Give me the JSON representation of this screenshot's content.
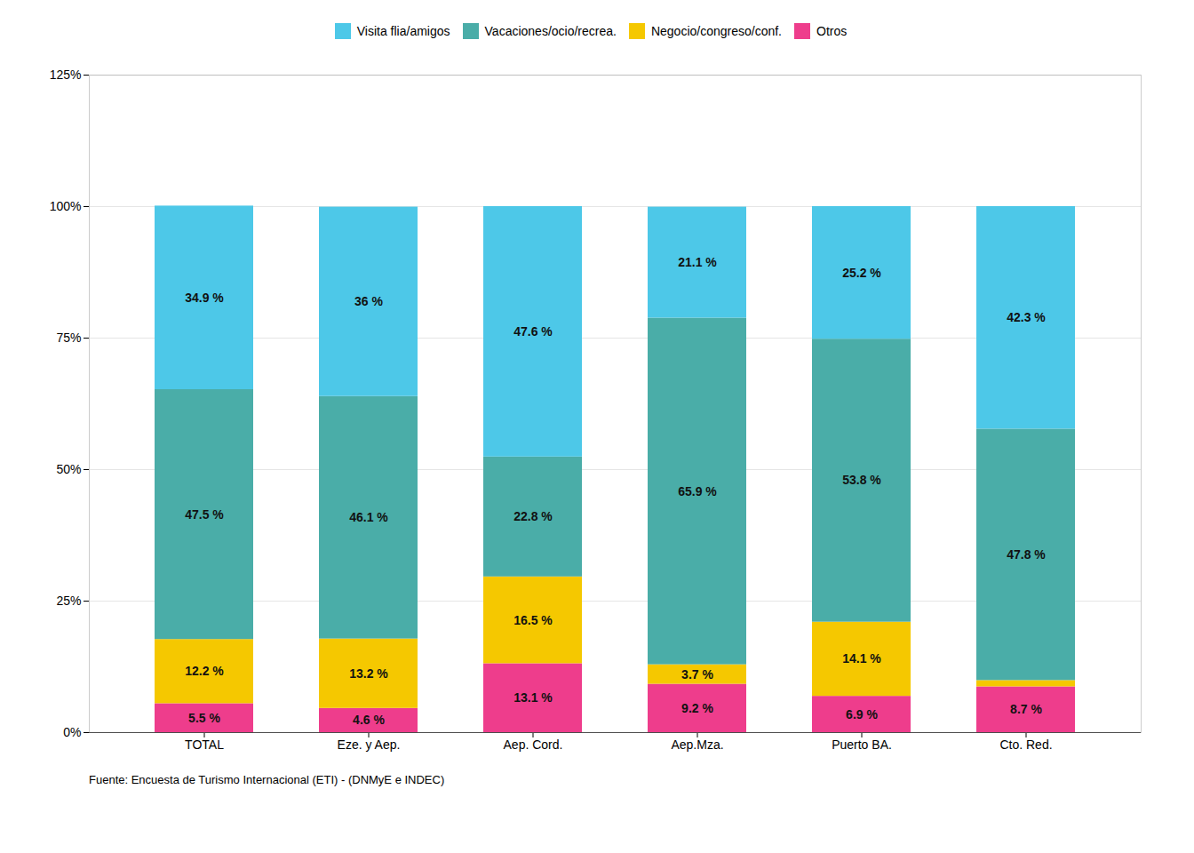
{
  "chart_data": {
    "type": "bar",
    "stacked": true,
    "categories": [
      "TOTAL",
      "Eze. y Aep.",
      "Aep. Cord.",
      "Aep.Mza.",
      "Puerto BA.",
      "Cto. Red."
    ],
    "series": [
      {
        "name": "Otros",
        "color": "#EE3D8C",
        "values": [
          5.5,
          4.6,
          13.1,
          9.2,
          6.9,
          8.7
        ],
        "value_labels": [
          "5.5 %",
          "4.6 %",
          "13.1 %",
          "9.2 %",
          "6.9 %",
          "8.7 %"
        ]
      },
      {
        "name": "Negocio/congreso/conf.",
        "color": "#F5C800",
        "values": [
          12.2,
          13.2,
          16.5,
          3.7,
          14.1,
          1.2
        ],
        "value_labels": [
          "12.2 %",
          "13.2 %",
          "16.5 %",
          "3.7 %",
          "14.1 %",
          null
        ]
      },
      {
        "name": "Vacaciones/ocio/recrea.",
        "color": "#4AADA8",
        "values": [
          47.5,
          46.1,
          22.8,
          65.9,
          53.8,
          47.8
        ],
        "value_labels": [
          "47.5 %",
          "46.1 %",
          "22.8 %",
          "65.9 %",
          "53.8 %",
          "47.8 %"
        ]
      },
      {
        "name": "Visita flia/amigos",
        "color": "#4DC8E8",
        "values": [
          34.9,
          36.0,
          47.6,
          21.1,
          25.2,
          42.3
        ],
        "value_labels": [
          "34.9 %",
          "36 %",
          "47.6 %",
          "21.1 %",
          "25.2 %",
          "42.3 %"
        ]
      }
    ],
    "ylim": [
      0,
      125
    ],
    "yticks": [
      {
        "value": 0,
        "label": "0%"
      },
      {
        "value": 25,
        "label": "25%"
      },
      {
        "value": 50,
        "label": "50%"
      },
      {
        "value": 75,
        "label": "75%"
      },
      {
        "value": 100,
        "label": "100%"
      },
      {
        "value": 125,
        "label": "125%"
      }
    ],
    "grid": true,
    "data_labels": true,
    "legend": "top",
    "caption": "Fuente: Encuesta de Turismo Internacional (ETI) - (DNMyE e INDEC)"
  }
}
